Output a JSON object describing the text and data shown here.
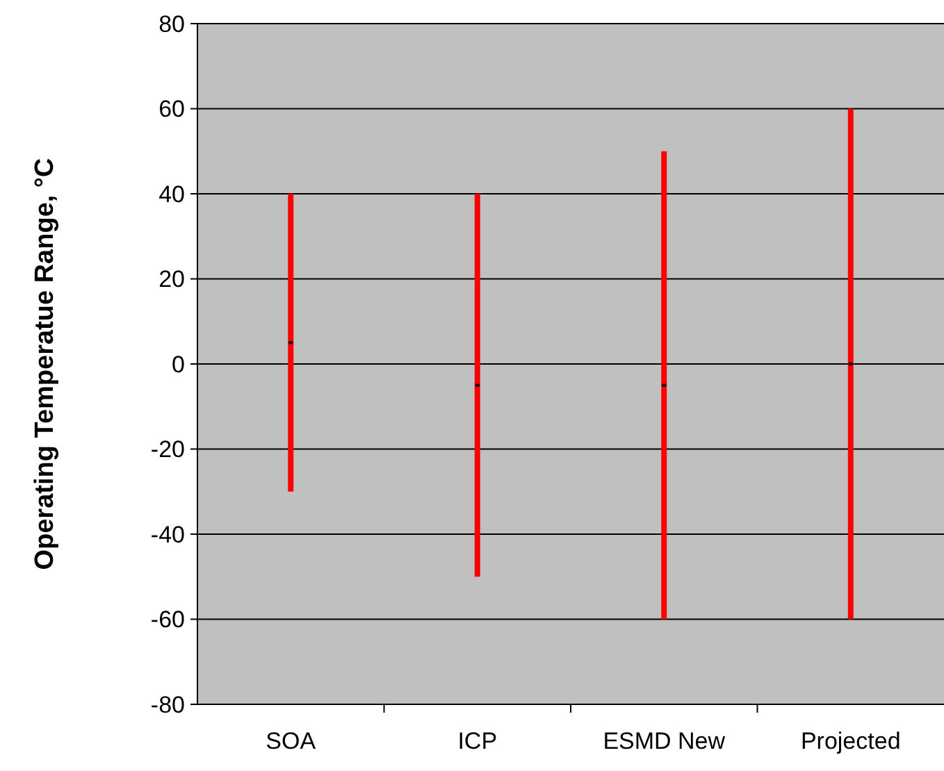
{
  "chart_data": {
    "type": "bar",
    "ylabel": "Operating Temperatue Range, °C",
    "categories": [
      "SOA",
      "ICP",
      "ESMD New",
      "Projected"
    ],
    "series": [
      {
        "color": "#ff0000",
        "values": [
          70,
          90,
          110,
          120
        ],
        "base": [
          -30,
          -50,
          -60,
          -60
        ]
      },
      {
        "type": "scatter",
        "color": "#000000",
        "x": [
          "SOA",
          "ICP",
          "ESMD New",
          "Projected"
        ],
        "values": [
          5,
          -5,
          -5,
          0
        ],
        "marker": "square"
      }
    ],
    "ylim": [
      -80,
      80
    ],
    "yticks": [
      -80,
      -60,
      -40,
      -20,
      0,
      20,
      40,
      60,
      80
    ],
    "grid": "y"
  }
}
